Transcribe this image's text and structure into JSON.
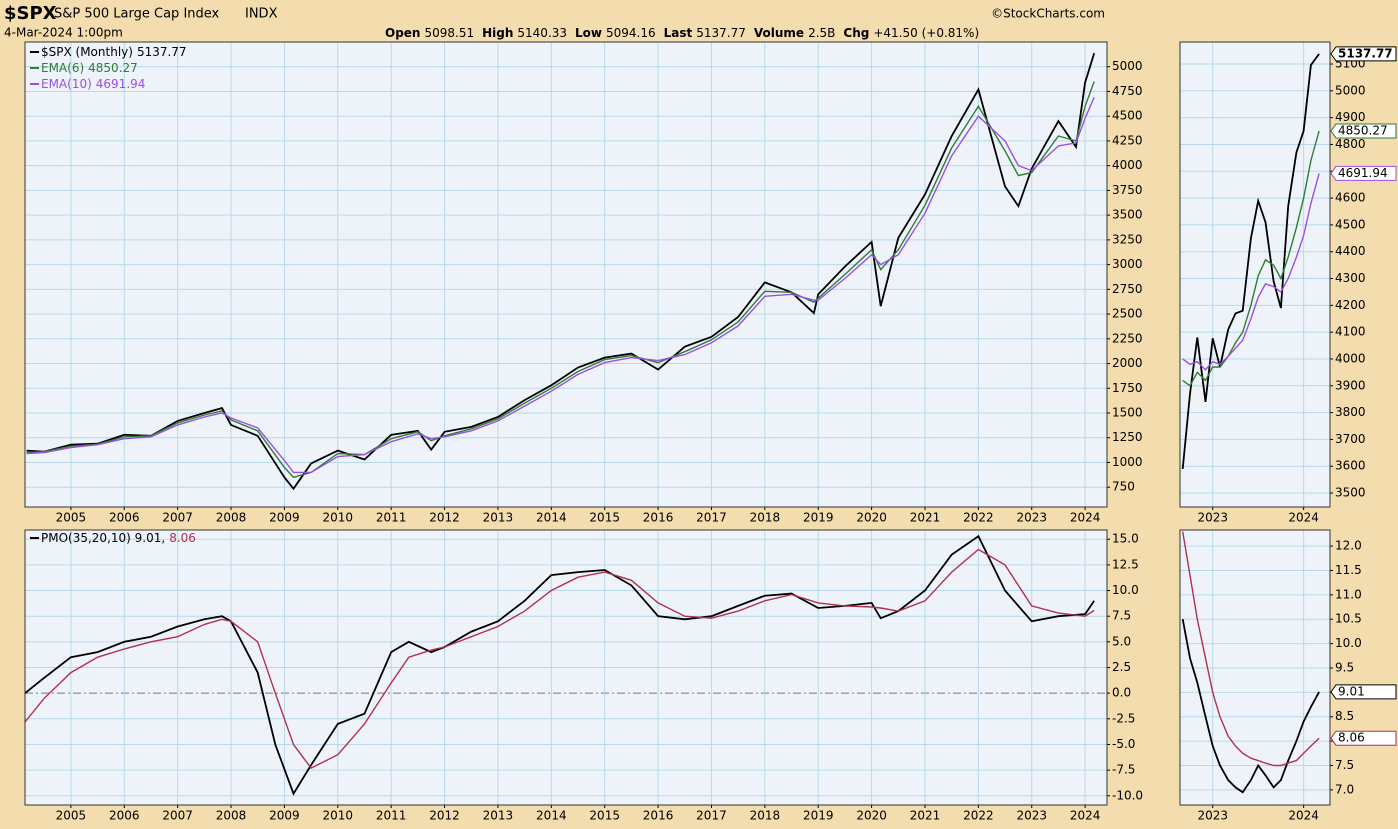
{
  "header": {
    "symbol": "$SPX",
    "name": "S&P 500 Large Cap Index",
    "exchange": "INDX",
    "date": "4-Mar-2024 1:00pm",
    "source": "©StockCharts.com",
    "quote": [
      {
        "label": "Open",
        "value": 5098.51
      },
      {
        "label": "High",
        "value": 5140.33
      },
      {
        "label": "Low",
        "value": 5094.16
      },
      {
        "label": "Last",
        "value": 5137.77
      },
      {
        "label": "Volume",
        "value": "2.5B"
      },
      {
        "label": "Chg",
        "value": "+41.50 (+0.81%)"
      }
    ]
  },
  "chart_data": [
    {
      "type": "line",
      "xlim": [
        2004.14,
        2024.41
      ],
      "ylim": [
        550,
        5250
      ],
      "xticks": [
        2005,
        2006,
        2007,
        2008,
        2009,
        2010,
        2011,
        2012,
        2013,
        2014,
        2015,
        2016,
        2017,
        2018,
        2019,
        2020,
        2021,
        2022,
        2023,
        2024
      ],
      "yticks": [
        750,
        1000,
        1250,
        1500,
        1750,
        2000,
        2250,
        2500,
        2750,
        3000,
        3250,
        3500,
        3750,
        4000,
        4250,
        4500,
        4750,
        5000
      ],
      "grid": true,
      "legend": "top-left",
      "x": [
        2004.17,
        2004.5,
        2005,
        2005.5,
        2006,
        2006.5,
        2007,
        2007.5,
        2007.83,
        2008,
        2008.5,
        2009,
        2009.17,
        2009.5,
        2010,
        2010.5,
        2011,
        2011.5,
        2011.75,
        2012,
        2012.5,
        2013,
        2013.5,
        2014,
        2014.5,
        2015,
        2015.5,
        2016,
        2016.5,
        2017,
        2017.5,
        2018,
        2018.5,
        2018.92,
        2019,
        2019.5,
        2020,
        2020.17,
        2020.5,
        2021,
        2021.5,
        2022,
        2022.5,
        2022.75,
        2023,
        2023.5,
        2023.83,
        2024,
        2024.17
      ],
      "series": [
        {
          "name": "$SPX (Monthly)",
          "color": "#000000",
          "values": [
            1120,
            1110,
            1180,
            1190,
            1280,
            1270,
            1420,
            1500,
            1550,
            1380,
            1270,
            850,
            735,
            990,
            1120,
            1030,
            1280,
            1320,
            1130,
            1310,
            1360,
            1460,
            1630,
            1780,
            1960,
            2060,
            2100,
            1940,
            2170,
            2270,
            2470,
            2820,
            2720,
            2510,
            2700,
            2980,
            3230,
            2580,
            3270,
            3710,
            4300,
            4770,
            3790,
            3590,
            3970,
            4450,
            4190,
            4840,
            5137.77
          ]
        },
        {
          "name": "EMA(6)",
          "color": "#2e7d32",
          "values": [
            1100,
            1110,
            1165,
            1185,
            1260,
            1270,
            1400,
            1480,
            1520,
            1430,
            1320,
            950,
            850,
            900,
            1090,
            1080,
            1240,
            1310,
            1220,
            1270,
            1340,
            1440,
            1600,
            1750,
            1920,
            2040,
            2080,
            2010,
            2120,
            2240,
            2420,
            2730,
            2720,
            2620,
            2660,
            2900,
            3150,
            2950,
            3150,
            3600,
            4180,
            4600,
            4150,
            3900,
            3930,
            4300,
            4250,
            4600,
            4850.27
          ]
        },
        {
          "name": "EMA(10)",
          "color": "#9c4fe0",
          "values": [
            1090,
            1100,
            1150,
            1180,
            1240,
            1260,
            1380,
            1460,
            1500,
            1450,
            1350,
            1020,
            900,
            900,
            1060,
            1080,
            1210,
            1290,
            1240,
            1260,
            1320,
            1420,
            1570,
            1720,
            1890,
            2010,
            2060,
            2030,
            2090,
            2210,
            2380,
            2680,
            2700,
            2640,
            2640,
            2860,
            3100,
            3000,
            3100,
            3520,
            4100,
            4500,
            4250,
            4000,
            3950,
            4200,
            4230,
            4480,
            4691.94
          ]
        }
      ]
    },
    {
      "type": "line",
      "xlim": [
        2004.14,
        2024.41
      ],
      "ylim": [
        -10.9,
        15.9
      ],
      "xticks": [
        2005,
        2006,
        2007,
        2008,
        2009,
        2010,
        2011,
        2012,
        2013,
        2014,
        2015,
        2016,
        2017,
        2018,
        2019,
        2020,
        2021,
        2022,
        2023,
        2024
      ],
      "yticks": [
        {
          "value": 15,
          "label": "15.0"
        },
        {
          "value": 12.5,
          "label": "12.5"
        },
        {
          "value": 10,
          "label": "10.0"
        },
        {
          "value": 7.5,
          "label": "7.5"
        },
        {
          "value": 5,
          "label": "5.0"
        },
        {
          "value": 2.5,
          "label": "2.5"
        },
        {
          "value": 0,
          "label": "0.0"
        },
        {
          "value": -2.5,
          "label": "-2.5"
        },
        {
          "value": -5,
          "label": "-5.0"
        },
        {
          "value": -7.5,
          "label": "-7.5"
        },
        {
          "value": -10,
          "label": "-10.0"
        }
      ],
      "grid": true,
      "zero_line": true,
      "legend_text": [
        {
          "text": "PMO(35,20,10) 9.01,",
          "color": "#000000"
        },
        {
          "text": "8.06",
          "color": "#b03050"
        }
      ],
      "x": [
        2004.14,
        2004.5,
        2005,
        2005.5,
        2006,
        2006.5,
        2007,
        2007.5,
        2007.83,
        2008,
        2008.5,
        2008.83,
        2009.17,
        2009.5,
        2010,
        2010.5,
        2011,
        2011.33,
        2011.75,
        2012,
        2012.5,
        2013,
        2013.5,
        2014,
        2014.5,
        2015,
        2015.5,
        2016,
        2016.5,
        2017,
        2017.5,
        2018,
        2018.5,
        2019,
        2019.5,
        2020,
        2020.17,
        2020.5,
        2021,
        2021.5,
        2022,
        2022.5,
        2023,
        2023.5,
        2024,
        2024.17
      ],
      "series": [
        {
          "color": "#000000",
          "values": [
            0,
            1.5,
            3.5,
            4,
            5,
            5.5,
            6.5,
            7.2,
            7.5,
            7,
            2,
            -5,
            -9.8,
            -7,
            -3,
            -2,
            4,
            5,
            4,
            4.5,
            6,
            7,
            9,
            11.5,
            11.8,
            12,
            10.5,
            7.5,
            7.2,
            7.5,
            8.5,
            9.5,
            9.7,
            8.3,
            8.5,
            8.8,
            7.3,
            8,
            10,
            13.5,
            15.3,
            10,
            7,
            7.5,
            7.7,
            9.01
          ]
        },
        {
          "color": "#b03050",
          "values": [
            -2.8,
            -0.5,
            2,
            3.5,
            4.3,
            5,
            5.5,
            6.7,
            7.2,
            7,
            5,
            0,
            -5,
            -7.3,
            -6,
            -3,
            1,
            3.5,
            4.2,
            4.5,
            5.5,
            6.5,
            8,
            10,
            11.3,
            11.8,
            11,
            8.8,
            7.5,
            7.3,
            8,
            9,
            9.6,
            8.8,
            8.5,
            8.4,
            8.3,
            8,
            9,
            11.8,
            14,
            12.5,
            8.5,
            7.8,
            7.5,
            8.06
          ]
        }
      ]
    },
    {
      "type": "line",
      "xlim": [
        2022.64,
        2024.29
      ],
      "ylim": [
        3448,
        5182
      ],
      "xticks": [
        2023,
        2024
      ],
      "yticks": [
        3500,
        3600,
        3700,
        3800,
        3900,
        4000,
        4100,
        4200,
        4300,
        4400,
        4500,
        4600,
        4700,
        4800,
        4900,
        5000,
        5100
      ],
      "grid": true,
      "tags": true,
      "x": [
        2022.67,
        2022.75,
        2022.83,
        2022.92,
        2023,
        2023.08,
        2023.17,
        2023.25,
        2023.33,
        2023.42,
        2023.5,
        2023.58,
        2023.67,
        2023.75,
        2023.83,
        2023.92,
        2024,
        2024.08,
        2024.17
      ],
      "series": [
        {
          "color": "#000000",
          "values": [
            3590,
            3870,
            4080,
            3840,
            4077,
            3970,
            4110,
            4170,
            4180,
            4450,
            4590,
            4510,
            4290,
            4190,
            4570,
            4770,
            4850,
            5096,
            5137.77
          ]
        },
        {
          "color": "#2e7d32",
          "values": [
            3920,
            3900,
            3950,
            3920,
            3970,
            3970,
            4010,
            4060,
            4100,
            4200,
            4310,
            4370,
            4350,
            4300,
            4380,
            4490,
            4600,
            4740,
            4850.27
          ]
        },
        {
          "color": "#9c4fe0",
          "values": [
            4000,
            3980,
            3990,
            3960,
            3990,
            3980,
            4010,
            4040,
            4070,
            4150,
            4230,
            4280,
            4270,
            4250,
            4300,
            4380,
            4460,
            4580,
            4691.94
          ]
        }
      ]
    },
    {
      "type": "line",
      "xlim": [
        2022.64,
        2024.29
      ],
      "ylim": [
        6.69,
        12.33
      ],
      "xticks": [
        2023,
        2024
      ],
      "yticks": [
        {
          "value": 12,
          "label": "12.0"
        },
        {
          "value": 11.5,
          "label": "11.5"
        },
        {
          "value": 11,
          "label": "11.0"
        },
        {
          "value": 10.5,
          "label": "10.5"
        },
        {
          "value": 10,
          "label": "10.0"
        },
        {
          "value": 9.5,
          "label": "9.5"
        },
        {
          "value": 9,
          "label": "9.0"
        },
        {
          "value": 8.5,
          "label": "8.5"
        },
        {
          "value": 8,
          "label": "8.0"
        },
        {
          "value": 7.5,
          "label": "7.5"
        },
        {
          "value": 7,
          "label": "7.0"
        }
      ],
      "grid": true,
      "tags": true,
      "x": [
        2022.67,
        2022.75,
        2022.83,
        2022.92,
        2023,
        2023.08,
        2023.17,
        2023.25,
        2023.33,
        2023.42,
        2023.5,
        2023.58,
        2023.67,
        2023.75,
        2023.83,
        2023.92,
        2024,
        2024.08,
        2024.17
      ],
      "series": [
        {
          "color": "#000000",
          "values": [
            10.5,
            9.7,
            9.2,
            8.5,
            7.9,
            7.5,
            7.2,
            7.05,
            6.95,
            7.2,
            7.5,
            7.3,
            7.05,
            7.2,
            7.6,
            8,
            8.4,
            8.7,
            9.01
          ]
        },
        {
          "color": "#b03050",
          "values": [
            12.3,
            11.4,
            10.5,
            9.7,
            9,
            8.5,
            8.1,
            7.9,
            7.75,
            7.65,
            7.6,
            7.55,
            7.5,
            7.5,
            7.55,
            7.6,
            7.75,
            7.9,
            8.06
          ]
        }
      ]
    }
  ]
}
